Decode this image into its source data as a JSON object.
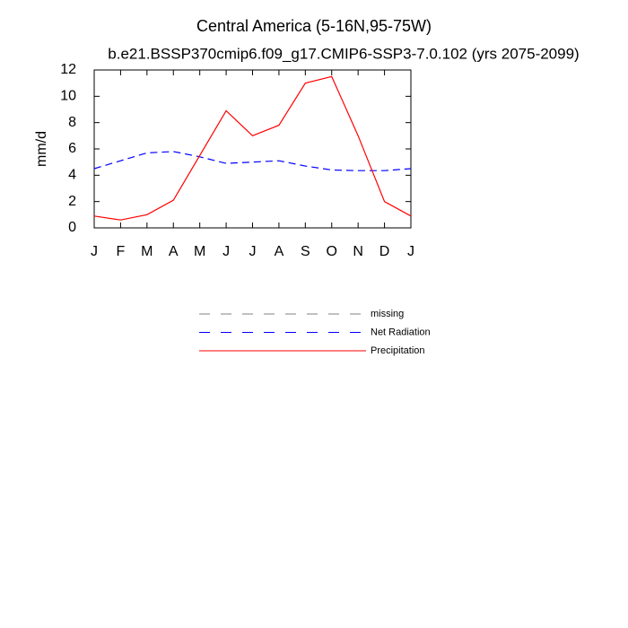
{
  "chart_data": {
    "type": "line",
    "title": "Central America (5-16N,95-75W)",
    "subtitle": "b.e21.BSSP370cmip6.f09_g17.CMIP6-SSP3-7.0.102 (yrs 2075-2099)",
    "y_label": "mm/d",
    "categories": [
      "J",
      "F",
      "M",
      "A",
      "M",
      "J",
      "J",
      "A",
      "S",
      "O",
      "N",
      "D",
      "J"
    ],
    "series": [
      {
        "name": "missing",
        "color": "#808080",
        "dash": true,
        "values": [
          null,
          null,
          null,
          null,
          null,
          null,
          null,
          null,
          null,
          null,
          null,
          null,
          null
        ]
      },
      {
        "name": "Net Radiation",
        "color": "#0000ff",
        "dash": true,
        "values": [
          4.5,
          5.1,
          5.7,
          5.8,
          5.4,
          4.9,
          5.0,
          5.1,
          4.7,
          4.4,
          4.35,
          4.35,
          4.5
        ]
      },
      {
        "name": "Precipitation",
        "color": "#ff0000",
        "dash": false,
        "values": [
          0.9,
          0.6,
          1.0,
          2.1,
          5.5,
          8.9,
          7.0,
          7.8,
          11.0,
          11.5,
          7.0,
          2.0,
          0.9
        ]
      }
    ],
    "ylim": [
      0,
      12
    ],
    "yticks": [
      0,
      2,
      4,
      6,
      8,
      10,
      12
    ]
  }
}
